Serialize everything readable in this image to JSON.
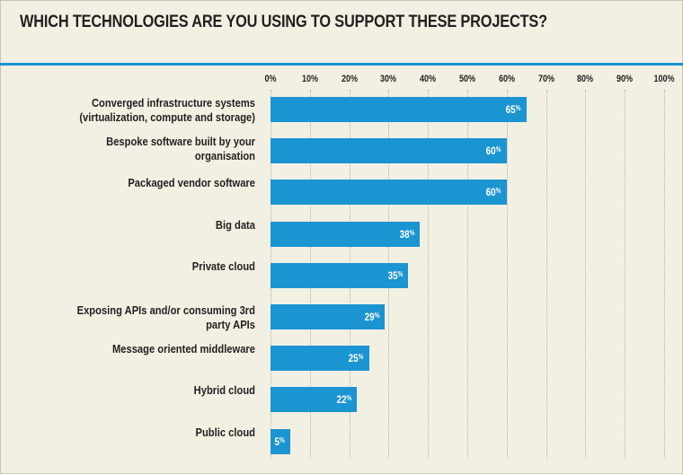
{
  "chart_data": {
    "type": "bar",
    "orientation": "horizontal",
    "title": "WHICH TECHNOLOGIES ARE YOU USING TO SUPPORT THESE PROJECTS?",
    "categories": [
      "Converged infrastructure systems\n(virtualization, compute and storage)",
      "Bespoke software built by your organisation",
      "Packaged vendor software",
      "Big data",
      "Private cloud",
      "Exposing APIs and/or consuming 3rd\nparty APIs",
      "Message oriented middleware",
      "Hybrid cloud",
      "Public cloud"
    ],
    "values": [
      65,
      60,
      60,
      38,
      35,
      29,
      25,
      22,
      5
    ],
    "value_suffix": "%",
    "xlim": [
      0,
      100
    ],
    "x_ticks": [
      "0%",
      "10%",
      "20%",
      "30%",
      "40%",
      "50%",
      "60%",
      "70%",
      "80%",
      "90%",
      "100%"
    ],
    "grid": true,
    "bar_color": "#1b94d2"
  },
  "colors": {
    "accent": "#1b94d2",
    "background": "#f2f0e3",
    "text": "#231f20"
  }
}
